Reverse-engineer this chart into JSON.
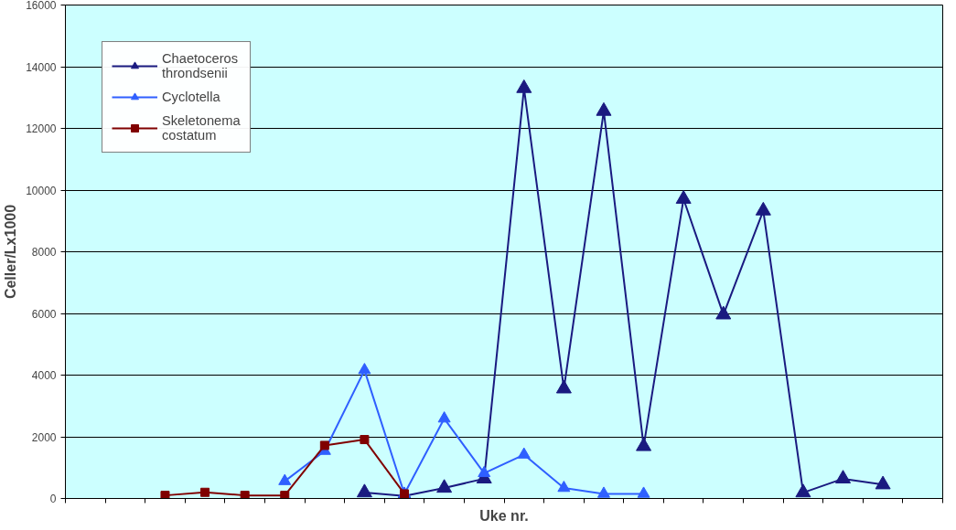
{
  "chart_data": {
    "type": "line",
    "xlabel": "Uke nr.",
    "ylabel": "Celler/Lx1000",
    "categories": [
      null,
      null,
      null,
      null,
      null,
      null,
      null,
      null,
      null,
      null,
      null,
      null,
      null,
      null,
      null,
      null,
      null,
      null,
      null,
      null,
      null,
      null
    ],
    "series": [
      {
        "name": "Chaetoceros\nthrondsenii",
        "color": "#1a1a80",
        "marker": "triangle",
        "values": [
          null,
          null,
          null,
          null,
          null,
          null,
          null,
          190,
          80,
          340,
          640,
          13300,
          3560,
          12560,
          1690,
          9710,
          5960,
          9330,
          190,
          640,
          450,
          null
        ]
      },
      {
        "name": "Cyclotella",
        "color": "#2f5fff",
        "marker": "triangle",
        "values": [
          null,
          null,
          null,
          null,
          null,
          560,
          1540,
          4160,
          150,
          2590,
          820,
          1420,
          340,
          150,
          150,
          null,
          null,
          null,
          null,
          null,
          null,
          null
        ]
      },
      {
        "name": "Skeletonema\ncostatum",
        "color": "#800000",
        "marker": "square",
        "values": [
          null,
          null,
          100,
          200,
          100,
          100,
          1720,
          1910,
          150,
          null,
          null,
          null,
          null,
          null,
          null,
          null,
          null,
          null,
          null,
          null,
          null,
          null
        ]
      }
    ],
    "ylim": [
      0,
      16000
    ],
    "yticks": [
      0,
      2000,
      4000,
      6000,
      8000,
      10000,
      12000,
      14000,
      16000
    ],
    "grid": "y",
    "legend": "top left",
    "tick_labels": "y",
    "line_style": "solid"
  }
}
